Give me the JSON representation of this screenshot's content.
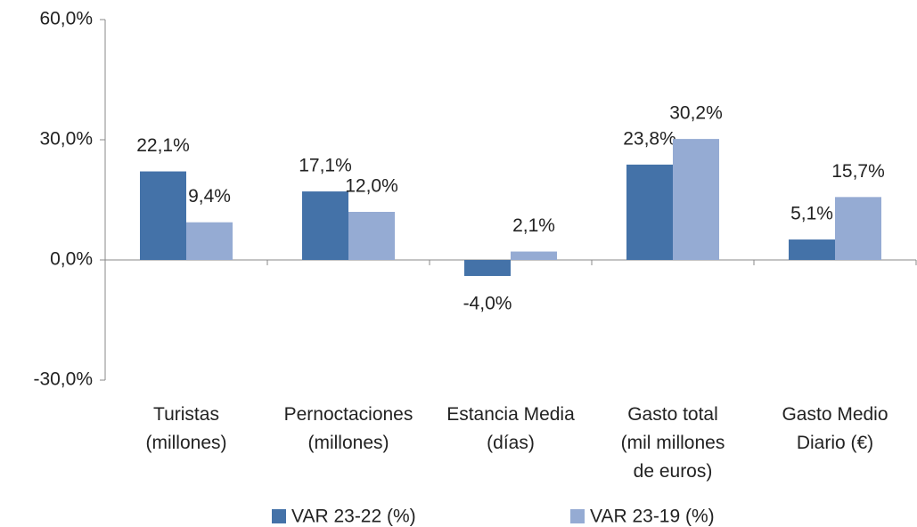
{
  "chart_data": {
    "type": "bar",
    "categories": [
      "Turistas\n(millones)",
      "Pernoctaciones\n(millones)",
      "Estancia Media\n(días)",
      "Gasto total\n(mil millones\nde euros)",
      "Gasto Medio\nDiario (€)"
    ],
    "series": [
      {
        "name": "VAR 23-22 (%)",
        "color": "#4472a8",
        "values": [
          22.1,
          17.1,
          -4.0,
          23.8,
          5.1
        ],
        "value_labels": [
          "22,1%",
          "17,1%",
          "-4,0%",
          "23,8%",
          "5,1%"
        ]
      },
      {
        "name": "VAR 23-19 (%)",
        "color": "#95abd3",
        "values": [
          9.4,
          12.0,
          2.1,
          30.2,
          15.7
        ],
        "value_labels": [
          "9,4%",
          "12,0%",
          "2,1%",
          "30,2%",
          "15,7%"
        ]
      }
    ],
    "ylim": [
      -30,
      60
    ],
    "yticks": [
      {
        "value": -30,
        "label": "-30,0%"
      },
      {
        "value": 0,
        "label": "0,0%"
      },
      {
        "value": 30,
        "label": "30,0%"
      },
      {
        "value": 60,
        "label": "60,0%"
      }
    ],
    "legend": "bottom"
  }
}
